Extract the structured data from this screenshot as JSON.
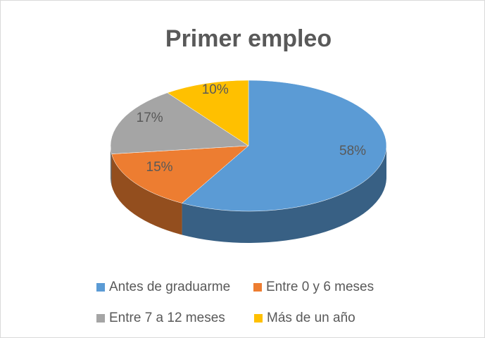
{
  "chart_data": {
    "type": "pie",
    "title": "Primer empleo",
    "categories": [
      "Antes de graduarme",
      "Entre 0 y 6 meses",
      "Entre 7 a 12 meses",
      "Más de un año"
    ],
    "values": [
      58,
      15,
      17,
      10
    ],
    "value_labels": [
      "58%",
      "15%",
      "17%",
      "10%"
    ],
    "colors": [
      "#5b9bd5",
      "#ed7d31",
      "#a5a5a5",
      "#ffc000"
    ]
  }
}
